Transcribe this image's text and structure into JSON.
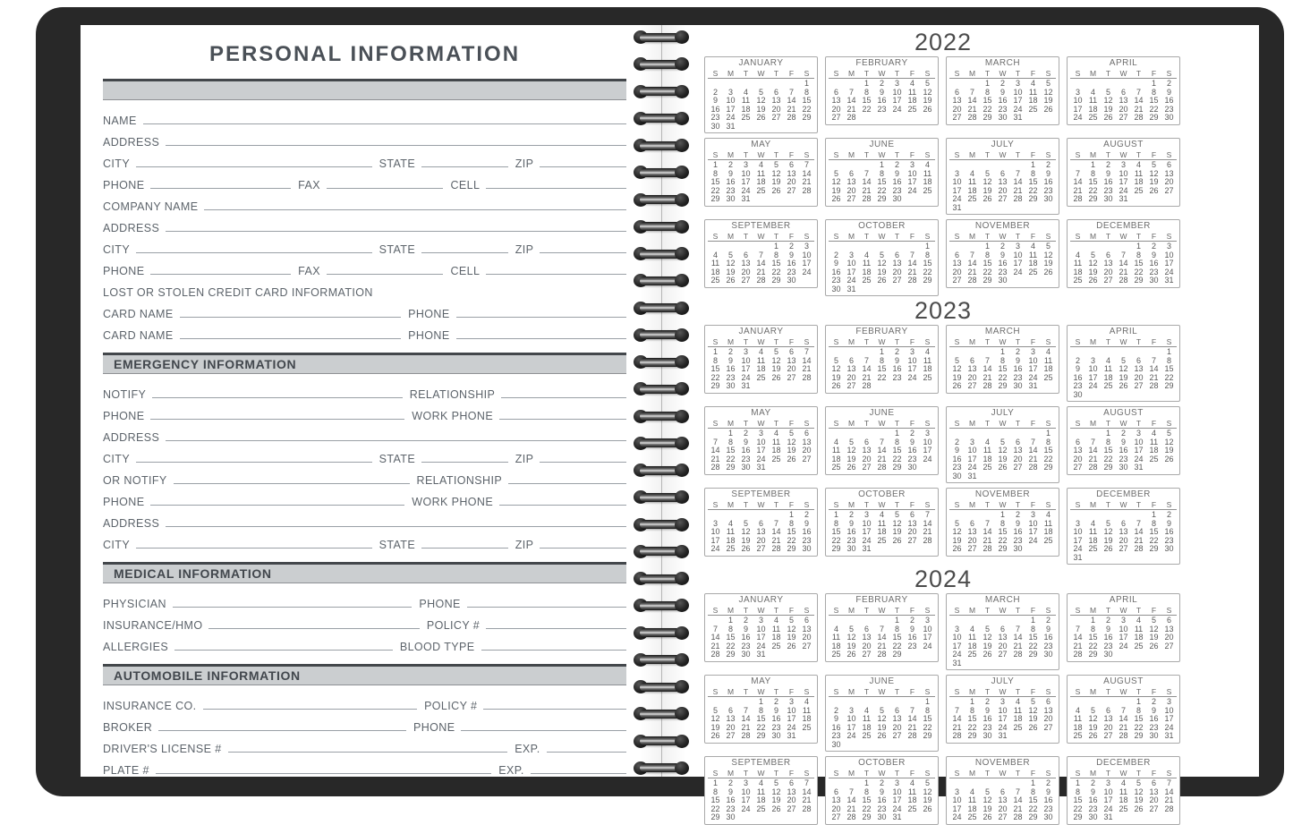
{
  "left_page": {
    "title": "PERSONAL INFORMATION",
    "form": [
      {
        "type": "section",
        "label": ""
      },
      {
        "type": "row",
        "fields": [
          {
            "label": "NAME",
            "grow": 10
          }
        ]
      },
      {
        "type": "row",
        "fields": [
          {
            "label": "ADDRESS",
            "grow": 10
          }
        ]
      },
      {
        "type": "row",
        "fields": [
          {
            "label": "CITY",
            "grow": 3
          },
          {
            "label": "STATE",
            "grow": 1.1
          },
          {
            "label": "ZIP",
            "grow": 1.1
          }
        ]
      },
      {
        "type": "row",
        "fields": [
          {
            "label": "PHONE",
            "grow": 1.2
          },
          {
            "label": "FAX",
            "grow": 1
          },
          {
            "label": "CELL",
            "grow": 1.2
          }
        ]
      },
      {
        "type": "row",
        "fields": [
          {
            "label": "COMPANY NAME",
            "grow": 10
          }
        ]
      },
      {
        "type": "row",
        "fields": [
          {
            "label": "ADDRESS",
            "grow": 10
          }
        ]
      },
      {
        "type": "row",
        "fields": [
          {
            "label": "CITY",
            "grow": 3
          },
          {
            "label": "STATE",
            "grow": 1.1
          },
          {
            "label": "ZIP",
            "grow": 1.1
          }
        ]
      },
      {
        "type": "row",
        "fields": [
          {
            "label": "PHONE",
            "grow": 1.2
          },
          {
            "label": "FAX",
            "grow": 1
          },
          {
            "label": "CELL",
            "grow": 1.2
          }
        ]
      },
      {
        "type": "text",
        "label": "LOST OR STOLEN CREDIT CARD INFORMATION"
      },
      {
        "type": "row",
        "fields": [
          {
            "label": "CARD NAME",
            "grow": 1.3
          },
          {
            "label": "PHONE",
            "grow": 1
          }
        ]
      },
      {
        "type": "row",
        "fields": [
          {
            "label": "CARD NAME",
            "grow": 1.3
          },
          {
            "label": "PHONE",
            "grow": 1
          }
        ]
      },
      {
        "type": "section",
        "label": "EMERGENCY INFORMATION"
      },
      {
        "type": "row",
        "fields": [
          {
            "label": "NOTIFY",
            "grow": 2
          },
          {
            "label": "RELATIONSHIP",
            "grow": 1
          }
        ]
      },
      {
        "type": "row",
        "fields": [
          {
            "label": "PHONE",
            "grow": 2
          },
          {
            "label": "WORK PHONE",
            "grow": 1
          }
        ]
      },
      {
        "type": "row",
        "fields": [
          {
            "label": "ADDRESS",
            "grow": 10
          }
        ]
      },
      {
        "type": "row",
        "fields": [
          {
            "label": "CITY",
            "grow": 3
          },
          {
            "label": "STATE",
            "grow": 1.1
          },
          {
            "label": "ZIP",
            "grow": 1.1
          }
        ]
      },
      {
        "type": "row",
        "fields": [
          {
            "label": "OR NOTIFY",
            "grow": 2
          },
          {
            "label": "RELATIONSHIP",
            "grow": 1
          }
        ]
      },
      {
        "type": "row",
        "fields": [
          {
            "label": "PHONE",
            "grow": 2
          },
          {
            "label": "WORK PHONE",
            "grow": 1
          }
        ]
      },
      {
        "type": "row",
        "fields": [
          {
            "label": "ADDRESS",
            "grow": 10
          }
        ]
      },
      {
        "type": "row",
        "fields": [
          {
            "label": "CITY",
            "grow": 3
          },
          {
            "label": "STATE",
            "grow": 1.1
          },
          {
            "label": "ZIP",
            "grow": 1.1
          }
        ]
      },
      {
        "type": "section",
        "label": "MEDICAL INFORMATION"
      },
      {
        "type": "row",
        "fields": [
          {
            "label": "PHYSICIAN",
            "grow": 1.5
          },
          {
            "label": "PHONE",
            "grow": 1
          }
        ]
      },
      {
        "type": "row",
        "fields": [
          {
            "label": "INSURANCE/HMO",
            "grow": 1.5
          },
          {
            "label": "POLICY #",
            "grow": 1
          }
        ]
      },
      {
        "type": "row",
        "fields": [
          {
            "label": "ALLERGIES",
            "grow": 1.5
          },
          {
            "label": "BLOOD TYPE",
            "grow": 1
          }
        ]
      },
      {
        "type": "section",
        "label": "AUTOMOBILE INFORMATION"
      },
      {
        "type": "row",
        "fields": [
          {
            "label": "INSURANCE CO.",
            "grow": 1.5
          },
          {
            "label": "POLICY #",
            "grow": 1
          }
        ]
      },
      {
        "type": "row",
        "fields": [
          {
            "label": "BROKER",
            "grow": 1.5
          },
          {
            "label": "PHONE",
            "grow": 1
          }
        ]
      },
      {
        "type": "row",
        "fields": [
          {
            "label": "DRIVER'S LICENSE #",
            "grow": 3.5
          },
          {
            "label": "EXP.",
            "grow": 1
          }
        ]
      },
      {
        "type": "row",
        "fields": [
          {
            "label": "PLATE #",
            "grow": 3.5
          },
          {
            "label": "EXP.",
            "grow": 1
          }
        ]
      }
    ]
  },
  "right_page": {
    "weekdays": [
      "S",
      "M",
      "T",
      "W",
      "T",
      "F",
      "S"
    ],
    "years": [
      {
        "year": "2022",
        "months": [
          {
            "name": "JANUARY",
            "start": 6,
            "days": 31
          },
          {
            "name": "FEBRUARY",
            "start": 2,
            "days": 28
          },
          {
            "name": "MARCH",
            "start": 2,
            "days": 31
          },
          {
            "name": "APRIL",
            "start": 5,
            "days": 30
          },
          {
            "name": "MAY",
            "start": 0,
            "days": 31
          },
          {
            "name": "JUNE",
            "start": 3,
            "days": 30
          },
          {
            "name": "JULY",
            "start": 5,
            "days": 31
          },
          {
            "name": "AUGUST",
            "start": 1,
            "days": 31
          },
          {
            "name": "SEPTEMBER",
            "start": 4,
            "days": 30
          },
          {
            "name": "OCTOBER",
            "start": 6,
            "days": 31
          },
          {
            "name": "NOVEMBER",
            "start": 2,
            "days": 30
          },
          {
            "name": "DECEMBER",
            "start": 4,
            "days": 31
          }
        ]
      },
      {
        "year": "2023",
        "months": [
          {
            "name": "JANUARY",
            "start": 0,
            "days": 31
          },
          {
            "name": "FEBRUARY",
            "start": 3,
            "days": 28
          },
          {
            "name": "MARCH",
            "start": 3,
            "days": 31
          },
          {
            "name": "APRIL",
            "start": 6,
            "days": 30
          },
          {
            "name": "MAY",
            "start": 1,
            "days": 31
          },
          {
            "name": "JUNE",
            "start": 4,
            "days": 30
          },
          {
            "name": "JULY",
            "start": 6,
            "days": 31
          },
          {
            "name": "AUGUST",
            "start": 2,
            "days": 31
          },
          {
            "name": "SEPTEMBER",
            "start": 5,
            "days": 30
          },
          {
            "name": "OCTOBER",
            "start": 0,
            "days": 31
          },
          {
            "name": "NOVEMBER",
            "start": 3,
            "days": 30
          },
          {
            "name": "DECEMBER",
            "start": 5,
            "days": 31
          }
        ]
      },
      {
        "year": "2024",
        "months": [
          {
            "name": "JANUARY",
            "start": 1,
            "days": 31
          },
          {
            "name": "FEBRUARY",
            "start": 4,
            "days": 29
          },
          {
            "name": "MARCH",
            "start": 5,
            "days": 31
          },
          {
            "name": "APRIL",
            "start": 1,
            "days": 30
          },
          {
            "name": "MAY",
            "start": 3,
            "days": 31
          },
          {
            "name": "JUNE",
            "start": 6,
            "days": 30
          },
          {
            "name": "JULY",
            "start": 1,
            "days": 31
          },
          {
            "name": "AUGUST",
            "start": 4,
            "days": 31
          },
          {
            "name": "SEPTEMBER",
            "start": 0,
            "days": 30
          },
          {
            "name": "OCTOBER",
            "start": 2,
            "days": 31
          },
          {
            "name": "NOVEMBER",
            "start": 5,
            "days": 30
          },
          {
            "name": "DECEMBER",
            "start": 0,
            "days": 31
          }
        ]
      }
    ]
  },
  "colors": {
    "cover": "#282828",
    "page": "#ffffff",
    "section_bar_fill": "#cbced0",
    "section_bar_border": "#43474b",
    "label_text": "#5d646b",
    "field_line": "#9aa0a6",
    "title_text": "#4a5057",
    "calendar_border": "#a9a9a9",
    "calendar_text": "#585858",
    "year_text": "#4c4c4c"
  }
}
